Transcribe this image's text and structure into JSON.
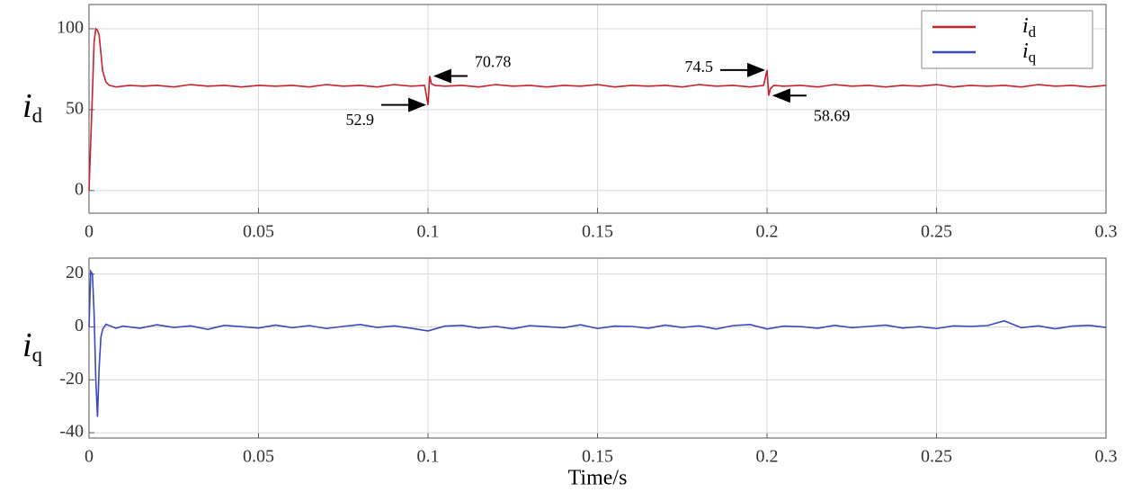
{
  "chart_data": [
    {
      "type": "line",
      "grid": true,
      "ylabel": {
        "text": "i",
        "subscript": "d"
      },
      "xlim": [
        0,
        0.3
      ],
      "xticks": [
        0,
        0.05,
        0.1,
        0.15,
        0.2,
        0.25,
        0.3
      ],
      "ylim": [
        -14,
        115
      ],
      "yticks": [
        0,
        50,
        100
      ],
      "legend": "upper right",
      "series": [
        {
          "name": "i",
          "subscript": "d",
          "color": "#c8202c",
          "x": [
            0,
            0.001,
            0.0015,
            0.002,
            0.0025,
            0.003,
            0.0035,
            0.004,
            0.005,
            0.006,
            0.008,
            0.012,
            0.016,
            0.02,
            0.025,
            0.03,
            0.035,
            0.04,
            0.045,
            0.05,
            0.055,
            0.06,
            0.065,
            0.07,
            0.075,
            0.08,
            0.085,
            0.09,
            0.095,
            0.099,
            0.1,
            0.1005,
            0.101,
            0.102,
            0.105,
            0.11,
            0.115,
            0.12,
            0.125,
            0.13,
            0.135,
            0.14,
            0.145,
            0.15,
            0.155,
            0.16,
            0.165,
            0.17,
            0.175,
            0.18,
            0.185,
            0.19,
            0.195,
            0.199,
            0.2,
            0.2005,
            0.201,
            0.202,
            0.205,
            0.21,
            0.215,
            0.22,
            0.225,
            0.23,
            0.235,
            0.24,
            0.245,
            0.25,
            0.255,
            0.26,
            0.265,
            0.27,
            0.275,
            0.28,
            0.285,
            0.29,
            0.295,
            0.3
          ],
          "values": [
            0,
            60,
            92,
            100,
            99,
            96,
            85,
            74,
            67,
            65,
            64,
            65,
            64.5,
            65,
            64,
            65.5,
            64.5,
            65,
            64,
            65,
            64.5,
            65,
            64,
            65.5,
            64.5,
            65,
            64,
            65.5,
            64.5,
            65,
            52.9,
            70.78,
            66,
            65,
            64.5,
            65,
            64,
            65.5,
            64.5,
            65,
            64,
            65,
            64.5,
            65.5,
            64,
            65,
            64.5,
            65,
            64,
            65.5,
            64.5,
            65,
            64,
            65,
            74.5,
            58.69,
            63,
            65,
            64.5,
            65,
            64,
            65.5,
            64.5,
            65,
            64,
            65,
            64.5,
            65.5,
            64,
            65,
            64.5,
            65,
            64,
            65.5,
            64.5,
            65,
            64,
            65
          ]
        }
      ],
      "annotations": [
        {
          "x": 0.1,
          "y": 52.9,
          "label": "52.9",
          "side": "left"
        },
        {
          "x": 0.1005,
          "y": 70.78,
          "label": "70.78",
          "side": "right"
        },
        {
          "x": 0.2,
          "y": 74.5,
          "label": "74.5",
          "side": "left"
        },
        {
          "x": 0.2005,
          "y": 58.69,
          "label": "58.69",
          "side": "right"
        }
      ]
    },
    {
      "type": "line",
      "grid": true,
      "ylabel": {
        "text": "i",
        "subscript": "q"
      },
      "xlabel": "Time/s",
      "xlim": [
        0,
        0.3
      ],
      "xticks": [
        0,
        0.05,
        0.1,
        0.15,
        0.2,
        0.25,
        0.3
      ],
      "ylim": [
        -42,
        26
      ],
      "yticks": [
        -40,
        -20,
        0,
        20
      ],
      "series": [
        {
          "name": "i",
          "subscript": "q",
          "color": "#3a48c0",
          "x": [
            0,
            0.0005,
            0.001,
            0.0015,
            0.002,
            0.0025,
            0.003,
            0.0035,
            0.004,
            0.005,
            0.006,
            0.008,
            0.01,
            0.015,
            0.02,
            0.025,
            0.03,
            0.035,
            0.04,
            0.045,
            0.05,
            0.055,
            0.06,
            0.065,
            0.07,
            0.075,
            0.08,
            0.085,
            0.09,
            0.095,
            0.1,
            0.105,
            0.11,
            0.115,
            0.12,
            0.125,
            0.13,
            0.135,
            0.14,
            0.145,
            0.15,
            0.155,
            0.16,
            0.165,
            0.17,
            0.175,
            0.18,
            0.185,
            0.19,
            0.195,
            0.2,
            0.205,
            0.21,
            0.215,
            0.22,
            0.225,
            0.23,
            0.235,
            0.24,
            0.245,
            0.25,
            0.255,
            0.26,
            0.265,
            0.27,
            0.275,
            0.28,
            0.285,
            0.29,
            0.295,
            0.3
          ],
          "values": [
            0,
            21,
            20,
            5,
            -20,
            -34,
            -15,
            -4,
            -1,
            1,
            0.5,
            -0.5,
            0.3,
            -0.5,
            0.8,
            -0.2,
            0.4,
            -0.9,
            0.6,
            0.1,
            -0.4,
            0.7,
            -0.3,
            0.5,
            -0.6,
            0.2,
            0.9,
            -0.2,
            0.4,
            -0.5,
            -1.5,
            0.3,
            0.6,
            -0.4,
            0.2,
            -0.7,
            0.5,
            0.1,
            -0.3,
            0.8,
            -0.6,
            0.3,
            0.2,
            -0.5,
            0.7,
            -0.2,
            0.4,
            -0.8,
            0.5,
            0.9,
            -0.8,
            0.3,
            0.1,
            -0.5,
            0.6,
            -0.3,
            0.2,
            0.7,
            -0.4,
            0.1,
            -0.6,
            0.4,
            0.2,
            0.5,
            2.3,
            -0.3,
            0.4,
            -0.7,
            0.3,
            0.6,
            -0.2
          ]
        }
      ]
    }
  ]
}
